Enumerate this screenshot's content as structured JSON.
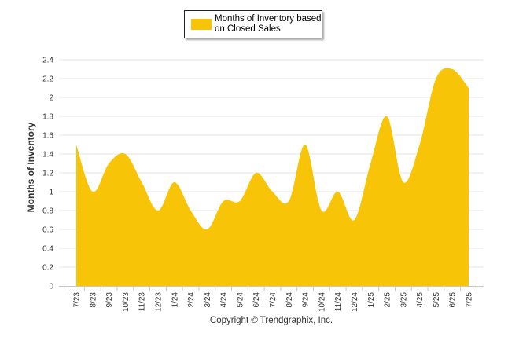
{
  "chart_data": {
    "type": "area",
    "categories": [
      "7/23",
      "8/23",
      "9/23",
      "10/23",
      "11/23",
      "12/23",
      "1/24",
      "2/24",
      "3/24",
      "4/24",
      "5/24",
      "6/24",
      "7/24",
      "8/24",
      "9/24",
      "10/24",
      "11/24",
      "12/24",
      "1/25",
      "2/25",
      "3/25",
      "4/25",
      "5/25",
      "6/25",
      "7/25"
    ],
    "series": [
      {
        "name": "Months of Inventory based on Closed Sales",
        "values": [
          1.5,
          1.0,
          1.3,
          1.4,
          1.1,
          0.8,
          1.1,
          0.8,
          0.6,
          0.9,
          0.9,
          1.2,
          1.0,
          0.9,
          1.5,
          0.8,
          1.0,
          0.7,
          1.3,
          1.8,
          1.1,
          1.5,
          2.2,
          2.3,
          2.1
        ]
      }
    ],
    "ylabel": "Months of Inventory",
    "xlabel": "",
    "ylim": [
      0,
      2.4
    ],
    "yticks": [
      "0",
      "0.2",
      "0.4",
      "0.6",
      "0.8",
      "1",
      "1.2",
      "1.4",
      "1.6",
      "1.8",
      "2",
      "2.2",
      "2.4"
    ],
    "grid": true,
    "legend_position": "top-center",
    "colors": {
      "series": "#F7C407",
      "grid": "#E4E4E4",
      "axis": "#C8C8C8"
    }
  },
  "legend": {
    "label": "Months of Inventory based on Closed Sales"
  },
  "footer": {
    "copyright": "Copyright © Trendgraphix, Inc."
  }
}
